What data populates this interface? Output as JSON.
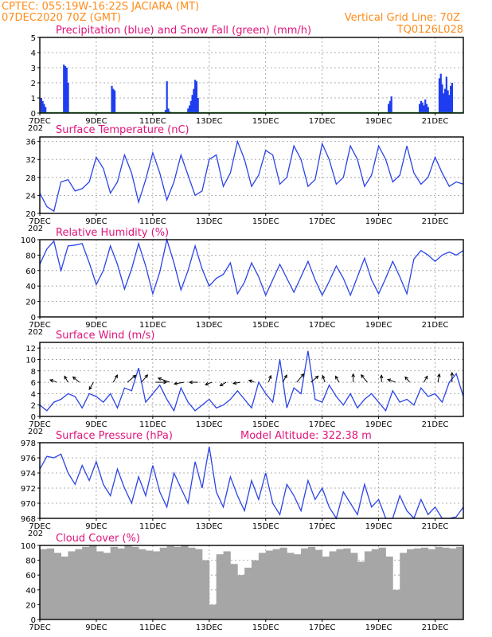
{
  "header": {
    "line1": "CPTEC:   055:19W-16:22S   JACIARA (MT)",
    "line2_left": "07DEC2020 70Z (GMT)",
    "grid_note": "Vertical Grid Line: 70Z",
    "code": "TQ0126L028",
    "model_altitude": "Model Altitude: 322.38 m"
  },
  "colors": {
    "precip": "#1f3df0",
    "snow": "#22aa22",
    "line": "#2b44e6",
    "cloud": "#a6a6a6",
    "wind_arrow": "#000000",
    "title": "#e0147a",
    "header": "#ff8c1a"
  },
  "x_axis": {
    "tick_labels": [
      "7DEC",
      "9DEC",
      "11DEC",
      "13DEC",
      "15DEC",
      "17DEC",
      "19DEC",
      "21DEC"
    ],
    "tick_days": [
      0,
      2,
      4,
      6,
      8,
      10,
      12,
      14
    ],
    "range_days": [
      0,
      15
    ],
    "stub_label": "202"
  },
  "chart_data": [
    {
      "type": "bar",
      "title": "Precipitation (blue) and Snow Fall (green) (mm/h)",
      "ylim": [
        0,
        5
      ],
      "yticks": [
        0,
        1,
        2,
        3,
        4,
        5
      ],
      "grid": true,
      "series": [
        {
          "name": "Precipitation",
          "x": [
            0.05,
            0.1,
            0.15,
            0.2,
            0.85,
            0.9,
            0.95,
            1.0,
            2.55,
            2.6,
            2.65,
            4.45,
            4.5,
            4.55,
            4.6,
            5.25,
            5.3,
            5.35,
            5.4,
            5.45,
            5.5,
            5.55,
            5.6,
            12.35,
            12.4,
            12.45,
            13.45,
            13.5,
            13.55,
            13.6,
            13.65,
            13.7,
            13.75,
            14.15,
            14.2,
            14.25,
            14.3,
            14.35,
            14.4,
            14.45,
            14.5,
            14.55,
            14.6
          ],
          "values": [
            1.0,
            0.8,
            0.6,
            0.4,
            3.2,
            3.1,
            3.0,
            2.0,
            1.8,
            1.6,
            1.5,
            0.2,
            2.1,
            0.3,
            0.1,
            0.3,
            0.5,
            0.8,
            1.2,
            1.6,
            2.2,
            2.1,
            1.0,
            0.6,
            0.8,
            1.1,
            0.6,
            0.8,
            0.7,
            0.5,
            0.9,
            0.6,
            0.4,
            2.3,
            2.6,
            1.9,
            1.3,
            1.6,
            2.4,
            1.5,
            1.2,
            1.8,
            2.0
          ]
        },
        {
          "name": "Snow Fall",
          "x": [
            0,
            15
          ],
          "values": [
            0,
            0
          ]
        }
      ]
    },
    {
      "type": "line",
      "title": "Surface Temperature (nC)",
      "ylim": [
        20,
        37
      ],
      "yticks": [
        20,
        24,
        28,
        32,
        36
      ],
      "grid": true,
      "x": [
        0.0,
        0.25,
        0.5,
        0.75,
        1.0,
        1.25,
        1.5,
        1.75,
        2.0,
        2.25,
        2.5,
        2.75,
        3.0,
        3.25,
        3.5,
        3.75,
        4.0,
        4.25,
        4.5,
        4.75,
        5.0,
        5.25,
        5.5,
        5.75,
        6.0,
        6.25,
        6.5,
        6.75,
        7.0,
        7.25,
        7.5,
        7.75,
        8.0,
        8.25,
        8.5,
        8.75,
        9.0,
        9.25,
        9.5,
        9.75,
        10.0,
        10.25,
        10.5,
        10.75,
        11.0,
        11.25,
        11.5,
        11.75,
        12.0,
        12.25,
        12.5,
        12.75,
        13.0,
        13.25,
        13.5,
        13.75,
        14.0,
        14.25,
        14.5,
        14.75,
        15.0
      ],
      "values": [
        24.5,
        21.5,
        20.5,
        27.0,
        27.5,
        25.0,
        25.5,
        27.0,
        32.5,
        30.0,
        24.5,
        27.0,
        33.0,
        29.0,
        22.5,
        27.5,
        33.5,
        29.0,
        23.0,
        27.0,
        33.0,
        28.5,
        24.0,
        25.0,
        32.0,
        33.0,
        26.0,
        29.0,
        36.0,
        32.0,
        26.0,
        28.5,
        34.0,
        33.0,
        26.5,
        28.0,
        35.0,
        32.0,
        26.0,
        27.5,
        35.5,
        32.0,
        26.5,
        28.0,
        35.0,
        32.0,
        26.0,
        28.5,
        35.0,
        32.0,
        27.0,
        28.5,
        35.0,
        29.0,
        26.5,
        28.0,
        32.5,
        29.0,
        26.0,
        27.0,
        26.5
      ]
    },
    {
      "type": "line",
      "title": "Relative Humidity (%)",
      "ylim": [
        0,
        100
      ],
      "yticks": [
        0,
        20,
        40,
        60,
        80,
        100
      ],
      "grid": true,
      "x": [
        0.0,
        0.25,
        0.5,
        0.75,
        1.0,
        1.25,
        1.5,
        1.75,
        2.0,
        2.25,
        2.5,
        2.75,
        3.0,
        3.25,
        3.5,
        3.75,
        4.0,
        4.25,
        4.5,
        4.75,
        5.0,
        5.25,
        5.5,
        5.75,
        6.0,
        6.25,
        6.5,
        6.75,
        7.0,
        7.25,
        7.5,
        7.75,
        8.0,
        8.25,
        8.5,
        8.75,
        9.0,
        9.25,
        9.5,
        9.75,
        10.0,
        10.25,
        10.5,
        10.75,
        11.0,
        11.25,
        11.5,
        11.75,
        12.0,
        12.25,
        12.5,
        12.75,
        13.0,
        13.25,
        13.5,
        13.75,
        14.0,
        14.25,
        14.5,
        14.75,
        15.0
      ],
      "values": [
        68,
        88,
        98,
        60,
        92,
        93,
        95,
        70,
        42,
        60,
        92,
        68,
        36,
        62,
        95,
        66,
        30,
        58,
        100,
        70,
        35,
        60,
        92,
        62,
        40,
        50,
        55,
        70,
        30,
        45,
        70,
        52,
        28,
        48,
        68,
        50,
        32,
        52,
        72,
        48,
        28,
        46,
        66,
        50,
        28,
        52,
        76,
        48,
        30,
        50,
        72,
        52,
        30,
        75,
        86,
        80,
        72,
        80,
        84,
        80,
        86
      ]
    },
    {
      "type": "line",
      "title": "Surface Wind (m/s)",
      "ylim": [
        0,
        13
      ],
      "yticks": [
        0,
        2,
        4,
        6,
        8,
        10,
        12
      ],
      "grid": true,
      "x": [
        0.0,
        0.25,
        0.5,
        0.75,
        1.0,
        1.25,
        1.5,
        1.75,
        2.0,
        2.25,
        2.5,
        2.75,
        3.0,
        3.25,
        3.5,
        3.75,
        4.0,
        4.25,
        4.5,
        4.75,
        5.0,
        5.25,
        5.5,
        5.75,
        6.0,
        6.25,
        6.5,
        6.75,
        7.0,
        7.25,
        7.5,
        7.75,
        8.0,
        8.25,
        8.5,
        8.75,
        9.0,
        9.25,
        9.5,
        9.75,
        10.0,
        10.25,
        10.5,
        10.75,
        11.0,
        11.25,
        11.5,
        11.75,
        12.0,
        12.25,
        12.5,
        12.75,
        13.0,
        13.25,
        13.5,
        13.75,
        14.0,
        14.25,
        14.5,
        14.75,
        15.0
      ],
      "values": [
        2.0,
        1.0,
        2.5,
        3.0,
        4.0,
        3.5,
        1.5,
        4.0,
        3.5,
        2.5,
        4.0,
        1.5,
        5.0,
        4.5,
        8.5,
        2.5,
        4.0,
        5.5,
        3.0,
        1.0,
        5.0,
        2.5,
        1.0,
        2.0,
        3.0,
        1.5,
        2.0,
        3.0,
        4.5,
        3.0,
        1.5,
        6.0,
        4.0,
        2.5,
        10.0,
        1.5,
        5.0,
        4.0,
        11.5,
        3.0,
        2.5,
        5.5,
        3.5,
        2.0,
        4.0,
        1.5,
        3.0,
        4.0,
        2.5,
        1.0,
        4.5,
        2.5,
        3.0,
        2.0,
        5.0,
        3.5,
        4.0,
        2.5,
        6.0,
        7.5,
        3.5
      ],
      "vectors_x": [
        0.6,
        1.0,
        1.4,
        1.9,
        2.6,
        3.1,
        3.6,
        4.1,
        4.6,
        5.1,
        5.6,
        6.1,
        6.6,
        7.1,
        7.6,
        8.1,
        8.6,
        9.1,
        9.6,
        10.1,
        10.6,
        11.1,
        11.6,
        12.1,
        12.6,
        13.1,
        13.6,
        14.1,
        14.6
      ],
      "vectors_dir_deg": [
        200,
        240,
        220,
        120,
        300,
        320,
        310,
        0,
        200,
        170,
        180,
        160,
        150,
        170,
        200,
        290,
        300,
        310,
        320,
        250,
        240,
        270,
        230,
        270,
        200,
        230,
        300,
        280,
        270
      ],
      "vectors_speed": [
        3,
        3,
        4,
        4,
        4,
        6,
        5,
        6,
        7,
        5,
        4,
        3,
        3,
        3,
        2,
        3,
        4,
        6,
        5,
        3,
        3,
        4,
        5,
        3,
        4,
        3,
        3,
        4,
        5
      ]
    },
    {
      "type": "line",
      "title": "Surface Pressure (hPa)",
      "ylim": [
        968,
        978
      ],
      "yticks": [
        968,
        970,
        972,
        974,
        976,
        978
      ],
      "grid": true,
      "x": [
        0.0,
        0.25,
        0.5,
        0.75,
        1.0,
        1.25,
        1.5,
        1.75,
        2.0,
        2.25,
        2.5,
        2.75,
        3.0,
        3.25,
        3.5,
        3.75,
        4.0,
        4.25,
        4.5,
        4.75,
        5.0,
        5.25,
        5.5,
        5.75,
        6.0,
        6.25,
        6.5,
        6.75,
        7.0,
        7.25,
        7.5,
        7.75,
        8.0,
        8.25,
        8.5,
        8.75,
        9.0,
        9.25,
        9.5,
        9.75,
        10.0,
        10.25,
        10.5,
        10.75,
        11.0,
        11.25,
        11.5,
        11.75,
        12.0,
        12.25,
        12.5,
        12.75,
        13.0,
        13.25,
        13.5,
        13.75,
        14.0,
        14.25,
        14.5,
        14.75,
        15.0
      ],
      "values": [
        974.5,
        976.2,
        976.0,
        976.5,
        974.0,
        972.5,
        975.0,
        973.0,
        975.5,
        972.5,
        971.0,
        974.5,
        972.0,
        970.0,
        973.5,
        971.0,
        975.0,
        971.5,
        969.5,
        974.0,
        972.0,
        970.0,
        975.5,
        972.0,
        977.5,
        971.5,
        969.5,
        973.5,
        971.0,
        969.0,
        973.0,
        970.5,
        974.0,
        970.0,
        968.5,
        972.5,
        971.0,
        969.0,
        973.0,
        970.5,
        972.0,
        969.5,
        968.0,
        971.5,
        970.0,
        968.5,
        972.5,
        969.5,
        970.5,
        967.5,
        968.0,
        971.0,
        969.0,
        967.8,
        970.5,
        968.5,
        969.5,
        967.8,
        967.5,
        968.2,
        969.5
      ]
    },
    {
      "type": "bar",
      "title": "Cloud Cover (%)",
      "ylim": [
        0,
        100
      ],
      "yticks": [
        0,
        20,
        40,
        60,
        80,
        100
      ],
      "grid": true,
      "x": [
        0.0,
        0.25,
        0.5,
        0.75,
        1.0,
        1.25,
        1.5,
        1.75,
        2.0,
        2.25,
        2.5,
        2.75,
        3.0,
        3.25,
        3.5,
        3.75,
        4.0,
        4.25,
        4.5,
        4.75,
        5.0,
        5.25,
        5.5,
        5.75,
        6.0,
        6.25,
        6.5,
        6.75,
        7.0,
        7.25,
        7.5,
        7.75,
        8.0,
        8.25,
        8.5,
        8.75,
        9.0,
        9.25,
        9.5,
        9.75,
        10.0,
        10.25,
        10.5,
        10.75,
        11.0,
        11.25,
        11.5,
        11.75,
        12.0,
        12.25,
        12.5,
        12.75,
        13.0,
        13.25,
        13.5,
        13.75,
        14.0,
        14.25,
        14.5,
        14.75
      ],
      "values": [
        95,
        96,
        90,
        85,
        92,
        95,
        98,
        100,
        92,
        90,
        98,
        96,
        100,
        98,
        95,
        93,
        92,
        97,
        99,
        98,
        100,
        97,
        95,
        80,
        20,
        88,
        92,
        75,
        60,
        70,
        80,
        90,
        93,
        95,
        97,
        90,
        88,
        96,
        98,
        94,
        85,
        92,
        95,
        96,
        90,
        78,
        92,
        95,
        97,
        85,
        40,
        90,
        95,
        96,
        97,
        95,
        98,
        97,
        96,
        98
      ]
    }
  ]
}
